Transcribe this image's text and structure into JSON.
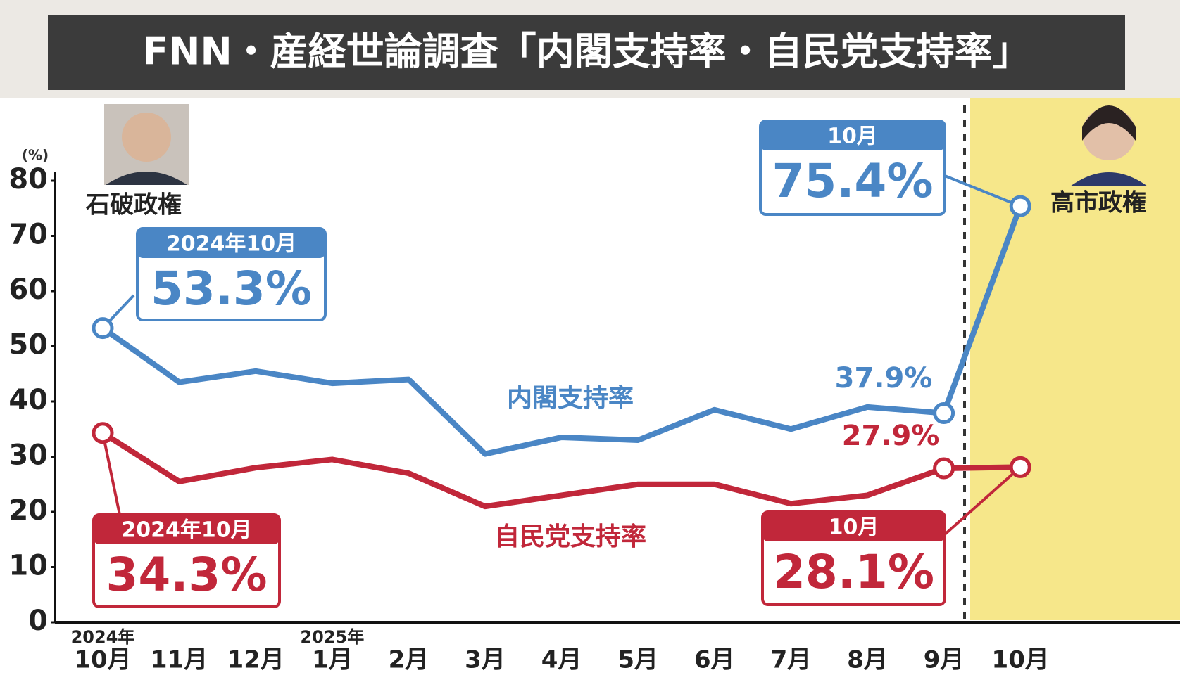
{
  "chart_data": {
    "type": "line",
    "title": "FNN・産経世論調査「内閣支持率・自民党支持率」",
    "y_unit_label": "(%)",
    "categories": [
      "10月",
      "11月",
      "12月",
      "1月",
      "2月",
      "3月",
      "4月",
      "5月",
      "6月",
      "7月",
      "8月",
      "9月",
      "10月"
    ],
    "category_years": [
      "2024年",
      null,
      null,
      "2025年",
      null,
      null,
      null,
      null,
      null,
      null,
      null,
      null,
      null
    ],
    "ylim": [
      0,
      80
    ],
    "yticks": [
      0,
      10,
      20,
      30,
      40,
      50,
      60,
      70,
      80
    ],
    "grid": false,
    "era_labels": [
      "石破政権",
      "高市政権"
    ],
    "series": [
      {
        "name": "内閣支持率",
        "color": "#4a86c5",
        "values": [
          53.3,
          43.5,
          45.5,
          43.3,
          44,
          30.5,
          33.5,
          33,
          38.5,
          35,
          39,
          37.9,
          75.4
        ],
        "value_labels": [
          "53.3%",
          null,
          null,
          null,
          null,
          null,
          null,
          null,
          null,
          null,
          null,
          "37.9%",
          "75.4%"
        ],
        "value_label_headers": [
          "2024年10月",
          null,
          null,
          null,
          null,
          null,
          null,
          null,
          null,
          null,
          null,
          null,
          "10月"
        ]
      },
      {
        "name": "自民党支持率",
        "color": "#c1273a",
        "values": [
          34.3,
          25.5,
          28,
          29.5,
          27,
          21,
          23,
          25,
          25,
          21.5,
          23,
          27.9,
          28.1
        ],
        "value_labels": [
          "34.3%",
          null,
          null,
          null,
          null,
          null,
          null,
          null,
          null,
          null,
          null,
          "27.9%",
          "28.1%"
        ],
        "value_label_headers": [
          "2024年10月",
          null,
          null,
          null,
          null,
          null,
          null,
          null,
          null,
          null,
          null,
          null,
          "10月"
        ]
      }
    ]
  }
}
